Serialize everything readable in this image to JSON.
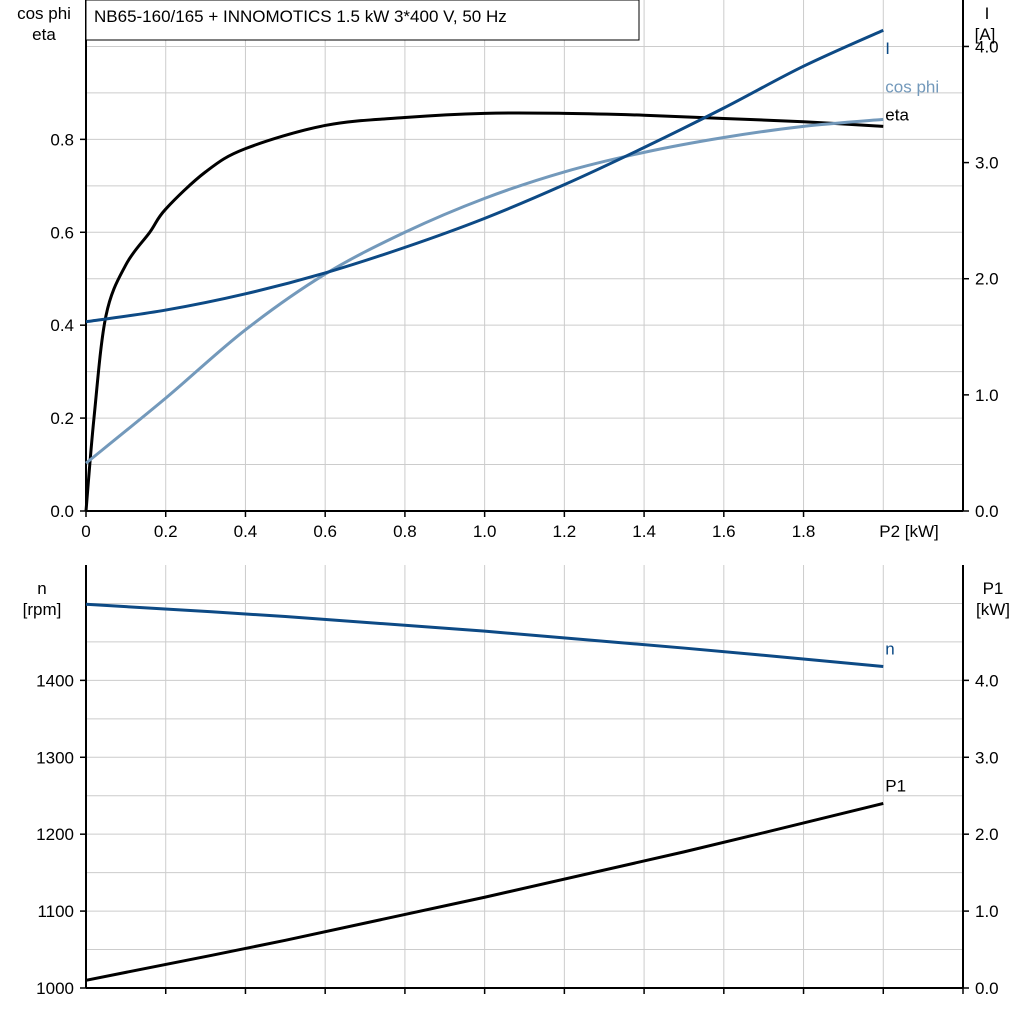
{
  "chart_data": [
    {
      "type": "line",
      "title": "NB65-160/165 + INNOMOTICS   1.5 kW   3*400 V, 50 Hz",
      "xlabel": "P2 [kW]",
      "ylabel_left": [
        "cos phi",
        "eta"
      ],
      "ylabel_right": [
        "I",
        "[A]"
      ],
      "xlim": [
        0,
        2.2
      ],
      "ylim_left": [
        0,
        1.1
      ],
      "ylim_right": [
        0,
        4.4
      ],
      "x_ticks": [
        "0",
        "0.2",
        "0.4",
        "0.6",
        "0.8",
        "1.0",
        "1.2",
        "1.4",
        "1.6",
        "1.8"
      ],
      "y_ticks_left": [
        "0.0",
        "0.2",
        "0.4",
        "0.6",
        "0.8"
      ],
      "y_ticks_right": [
        "0.0",
        "1.0",
        "2.0",
        "3.0",
        "4.0"
      ],
      "grid": true,
      "series": [
        {
          "name": "eta",
          "axis": "left",
          "color": "#000000",
          "x": [
            0,
            0.02,
            0.05,
            0.1,
            0.16,
            0.2,
            0.3,
            0.4,
            0.6,
            0.8,
            1.0,
            1.2,
            1.4,
            1.6,
            1.8,
            2.0
          ],
          "y": [
            0,
            0.2,
            0.42,
            0.53,
            0.6,
            0.65,
            0.73,
            0.78,
            0.83,
            0.847,
            0.856,
            0.856,
            0.852,
            0.845,
            0.838,
            0.828
          ]
        },
        {
          "name": "cos phi",
          "axis": "left",
          "color": "#7399bb",
          "x": [
            0,
            0.2,
            0.4,
            0.6,
            0.8,
            1.0,
            1.2,
            1.4,
            1.6,
            1.8,
            2.0
          ],
          "y": [
            0.103,
            0.243,
            0.39,
            0.51,
            0.6,
            0.673,
            0.73,
            0.772,
            0.804,
            0.828,
            0.843
          ]
        },
        {
          "name": "I",
          "axis": "right",
          "color": "#0d4a85",
          "x": [
            0,
            0.2,
            0.4,
            0.6,
            0.8,
            1.0,
            1.2,
            1.4,
            1.6,
            1.8,
            2.0
          ],
          "y": [
            1.63,
            1.73,
            1.87,
            2.05,
            2.27,
            2.52,
            2.81,
            3.13,
            3.47,
            3.83,
            4.14
          ]
        }
      ]
    },
    {
      "type": "line",
      "ylabel_left": [
        "n",
        "[rpm]"
      ],
      "ylabel_right": [
        "P1",
        "[kW]"
      ],
      "xlim": [
        0,
        2.2
      ],
      "ylim_left": [
        1000,
        1550
      ],
      "ylim_right": [
        0,
        5.5
      ],
      "y_ticks_left": [
        "1000",
        "1100",
        "1200",
        "1300",
        "1400"
      ],
      "y_ticks_right": [
        "0.0",
        "1.0",
        "2.0",
        "3.0",
        "4.0"
      ],
      "grid": true,
      "series": [
        {
          "name": "n",
          "axis": "left",
          "color": "#0d4a85",
          "x": [
            0,
            0.5,
            1.0,
            1.5,
            2.0
          ],
          "y": [
            1499,
            1483,
            1464,
            1442,
            1418
          ]
        },
        {
          "name": "P1",
          "axis": "right",
          "color": "#000000",
          "x": [
            0,
            0.5,
            1.0,
            1.5,
            2.0
          ],
          "y": [
            0.1,
            0.62,
            1.18,
            1.77,
            2.4
          ]
        }
      ]
    }
  ]
}
